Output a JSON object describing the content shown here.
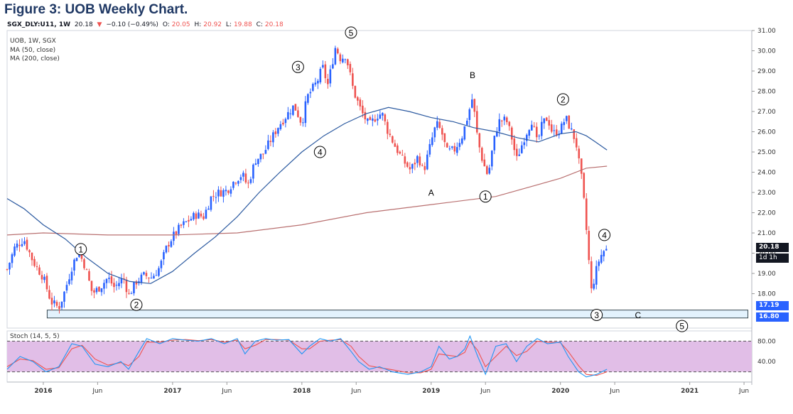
{
  "figure_title": "Figure 3: UOB Weekly Chart.",
  "header": {
    "symbol": "SGX_DLY:U11, 1W",
    "last": "20.18",
    "change_arrow": "▼",
    "change": "−0.10 (−0.49%)",
    "open_label": "O:",
    "open": "20.05",
    "high_label": "H:",
    "high": "20.92",
    "low_label": "L:",
    "low": "19.88",
    "close_label": "C:",
    "close": "20.18"
  },
  "legend": {
    "main": "UOB, 1W, SGX",
    "ma50": "MA (50, close)",
    "ma200": "MA (200, close)",
    "stoch": "Stoch (14, 5, 5)"
  },
  "price_tags": {
    "last": "20.18",
    "countdown": "1d 1h",
    "support_top": "17.19",
    "support_bottom": "16.80"
  },
  "colors": {
    "up": "#2962ff",
    "down": "#ef5350",
    "ma50": "#2c5aa0",
    "ma200": "#b97070",
    "stoch_k": "#2196f3",
    "stoch_d": "#ef5350",
    "stoch_band": "#e1bee7",
    "support_box": "#e3f2fd",
    "title": "#1f3864"
  },
  "chart_data": {
    "type": "candlestick",
    "y_axis": {
      "min": 16.3,
      "max": 31.0,
      "ticks": [
        18.0,
        19.0,
        20.0,
        21.0,
        22.0,
        23.0,
        24.0,
        25.0,
        26.0,
        27.0,
        28.0,
        29.0,
        30.0,
        31.0
      ]
    },
    "x_axis": {
      "ticks": [
        {
          "label": "2016",
          "date": 2016.0
        },
        {
          "label": "Jun",
          "date": 2016.42
        },
        {
          "label": "2017",
          "date": 2017.0
        },
        {
          "label": "Jun",
          "date": 2017.42
        },
        {
          "label": "2018",
          "date": 2018.0
        },
        {
          "label": "Jun",
          "date": 2018.42
        },
        {
          "label": "2019",
          "date": 2019.0
        },
        {
          "label": "Jun",
          "date": 2019.42
        },
        {
          "label": "2020",
          "date": 2020.0
        },
        {
          "label": "Jun",
          "date": 2020.42
        },
        {
          "label": "2021",
          "date": 2021.0
        },
        {
          "label": "Jun",
          "date": 2021.42
        }
      ],
      "range": [
        2015.72,
        2021.48
      ]
    },
    "price_path": [
      [
        2015.72,
        19.2
      ],
      [
        2015.78,
        20.3
      ],
      [
        2015.85,
        20.7
      ],
      [
        2015.92,
        19.6
      ],
      [
        2016.0,
        18.8
      ],
      [
        2016.06,
        17.6
      ],
      [
        2016.12,
        17.3
      ],
      [
        2016.17,
        18.2
      ],
      [
        2016.22,
        19.3
      ],
      [
        2016.27,
        20.1
      ],
      [
        2016.32,
        19.4
      ],
      [
        2016.38,
        18.0
      ],
      [
        2016.45,
        18.4
      ],
      [
        2016.5,
        18.8
      ],
      [
        2016.55,
        18.3
      ],
      [
        2016.62,
        18.8
      ],
      [
        2016.66,
        17.9
      ],
      [
        2016.72,
        18.6
      ],
      [
        2016.78,
        18.9
      ],
      [
        2016.84,
        18.8
      ],
      [
        2016.9,
        19.3
      ],
      [
        2016.96,
        20.4
      ],
      [
        2017.0,
        20.8
      ],
      [
        2017.06,
        21.3
      ],
      [
        2017.12,
        21.6
      ],
      [
        2017.18,
        21.9
      ],
      [
        2017.24,
        21.8
      ],
      [
        2017.3,
        22.8
      ],
      [
        2017.36,
        23.0
      ],
      [
        2017.42,
        23.1
      ],
      [
        2017.48,
        23.6
      ],
      [
        2017.54,
        23.9
      ],
      [
        2017.58,
        23.3
      ],
      [
        2017.64,
        24.6
      ],
      [
        2017.7,
        24.9
      ],
      [
        2017.76,
        25.6
      ],
      [
        2017.82,
        26.3
      ],
      [
        2017.88,
        26.8
      ],
      [
        2017.94,
        27.3
      ],
      [
        2018.0,
        26.4
      ],
      [
        2018.04,
        27.7
      ],
      [
        2018.08,
        28.1
      ],
      [
        2018.12,
        28.5
      ],
      [
        2018.16,
        29.2
      ],
      [
        2018.2,
        28.3
      ],
      [
        2018.26,
        30.2
      ],
      [
        2018.3,
        29.6
      ],
      [
        2018.34,
        29.8
      ],
      [
        2018.4,
        28.0
      ],
      [
        2018.46,
        27.0
      ],
      [
        2018.52,
        26.3
      ],
      [
        2018.58,
        26.8
      ],
      [
        2018.62,
        26.9
      ],
      [
        2018.66,
        26.1
      ],
      [
        2018.72,
        25.3
      ],
      [
        2018.78,
        24.6
      ],
      [
        2018.84,
        24.1
      ],
      [
        2018.9,
        24.8
      ],
      [
        2018.94,
        24.0
      ],
      [
        2019.0,
        25.5
      ],
      [
        2019.04,
        26.4
      ],
      [
        2019.08,
        26.0
      ],
      [
        2019.12,
        25.0
      ],
      [
        2019.18,
        25.1
      ],
      [
        2019.24,
        25.8
      ],
      [
        2019.28,
        26.7
      ],
      [
        2019.32,
        27.7
      ],
      [
        2019.36,
        25.6
      ],
      [
        2019.4,
        24.5
      ],
      [
        2019.44,
        23.8
      ],
      [
        2019.48,
        25.4
      ],
      [
        2019.52,
        26.5
      ],
      [
        2019.58,
        26.6
      ],
      [
        2019.62,
        25.8
      ],
      [
        2019.66,
        24.6
      ],
      [
        2019.72,
        25.7
      ],
      [
        2019.78,
        26.6
      ],
      [
        2019.82,
        25.4
      ],
      [
        2019.86,
        26.4
      ],
      [
        2019.9,
        26.7
      ],
      [
        2019.94,
        25.9
      ],
      [
        2020.0,
        26.1
      ],
      [
        2020.04,
        26.7
      ],
      [
        2020.08,
        26.1
      ],
      [
        2020.12,
        25.5
      ],
      [
        2020.14,
        24.6
      ],
      [
        2020.17,
        23.4
      ],
      [
        2020.2,
        21.2
      ],
      [
        2020.22,
        19.6
      ],
      [
        2020.24,
        18.1
      ],
      [
        2020.27,
        19.0
      ],
      [
        2020.3,
        19.7
      ],
      [
        2020.33,
        20.1
      ],
      [
        2020.36,
        20.18
      ]
    ],
    "ma50": [
      [
        2015.72,
        22.7
      ],
      [
        2015.85,
        22.2
      ],
      [
        2016.0,
        21.4
      ],
      [
        2016.17,
        20.7
      ],
      [
        2016.33,
        19.8
      ],
      [
        2016.5,
        19.0
      ],
      [
        2016.67,
        18.6
      ],
      [
        2016.83,
        18.5
      ],
      [
        2017.0,
        19.1
      ],
      [
        2017.17,
        20.0
      ],
      [
        2017.33,
        20.8
      ],
      [
        2017.5,
        21.8
      ],
      [
        2017.67,
        23.0
      ],
      [
        2017.83,
        24.0
      ],
      [
        2018.0,
        25.0
      ],
      [
        2018.17,
        25.8
      ],
      [
        2018.33,
        26.4
      ],
      [
        2018.5,
        26.9
      ],
      [
        2018.67,
        27.2
      ],
      [
        2018.83,
        27.0
      ],
      [
        2019.0,
        26.7
      ],
      [
        2019.17,
        26.5
      ],
      [
        2019.33,
        26.2
      ],
      [
        2019.5,
        26.0
      ],
      [
        2019.67,
        25.7
      ],
      [
        2019.83,
        25.5
      ],
      [
        2020.0,
        25.9
      ],
      [
        2020.12,
        26.0
      ],
      [
        2020.2,
        25.8
      ],
      [
        2020.27,
        25.5
      ],
      [
        2020.36,
        25.1
      ]
    ],
    "ma200": [
      [
        2015.72,
        20.9
      ],
      [
        2016.0,
        21.0
      ],
      [
        2016.5,
        20.9
      ],
      [
        2017.0,
        20.9
      ],
      [
        2017.5,
        21.0
      ],
      [
        2018.0,
        21.4
      ],
      [
        2018.5,
        22.0
      ],
      [
        2019.0,
        22.4
      ],
      [
        2019.5,
        22.8
      ],
      [
        2020.0,
        23.7
      ],
      [
        2020.2,
        24.2
      ],
      [
        2020.36,
        24.3
      ]
    ],
    "support_zone": {
      "from": 2016.03,
      "to": 2021.45,
      "low": 16.8,
      "high": 17.19
    },
    "wave_labels": [
      {
        "text": "1",
        "x": 2016.29,
        "y": 20.2,
        "circled": true
      },
      {
        "text": "2",
        "x": 2016.72,
        "y": 17.45,
        "circled": true
      },
      {
        "text": "3",
        "x": 2017.97,
        "y": 29.2,
        "circled": true
      },
      {
        "text": "4",
        "x": 2018.14,
        "y": 25.0,
        "circled": true
      },
      {
        "text": "5",
        "x": 2018.38,
        "y": 30.9,
        "circled": true
      },
      {
        "text": "B",
        "x": 2019.32,
        "y": 28.8,
        "circled": false
      },
      {
        "text": "A",
        "x": 2019.0,
        "y": 23.0,
        "circled": false
      },
      {
        "text": "1",
        "x": 2019.42,
        "y": 22.8,
        "circled": true
      },
      {
        "text": "2",
        "x": 2020.02,
        "y": 27.6,
        "circled": true
      },
      {
        "text": "4",
        "x": 2020.34,
        "y": 20.9,
        "circled": true
      },
      {
        "text": "3",
        "x": 2020.28,
        "y": 16.95,
        "circled": true
      },
      {
        "text": "C",
        "x": 2020.6,
        "y": 16.95,
        "circled": false
      },
      {
        "text": "5",
        "x": 2020.94,
        "y": 16.4,
        "circled": true
      }
    ],
    "stochastic": {
      "name": "Stoch (14, 5, 5)",
      "y_min": 0,
      "y_max": 100,
      "band": [
        20,
        80
      ],
      "ticks": [
        40.0,
        80.0
      ],
      "k": [
        [
          2015.72,
          25
        ],
        [
          2015.82,
          50
        ],
        [
          2015.92,
          40
        ],
        [
          2016.02,
          20
        ],
        [
          2016.12,
          30
        ],
        [
          2016.22,
          75
        ],
        [
          2016.3,
          70
        ],
        [
          2016.4,
          35
        ],
        [
          2016.5,
          30
        ],
        [
          2016.6,
          40
        ],
        [
          2016.66,
          25
        ],
        [
          2016.74,
          60
        ],
        [
          2016.8,
          85
        ],
        [
          2016.9,
          75
        ],
        [
          2017.0,
          85
        ],
        [
          2017.1,
          82
        ],
        [
          2017.2,
          80
        ],
        [
          2017.3,
          85
        ],
        [
          2017.4,
          75
        ],
        [
          2017.5,
          85
        ],
        [
          2017.56,
          55
        ],
        [
          2017.64,
          80
        ],
        [
          2017.72,
          85
        ],
        [
          2017.8,
          82
        ],
        [
          2017.9,
          83
        ],
        [
          2018.0,
          55
        ],
        [
          2018.06,
          70
        ],
        [
          2018.14,
          85
        ],
        [
          2018.22,
          80
        ],
        [
          2018.3,
          85
        ],
        [
          2018.38,
          60
        ],
        [
          2018.44,
          40
        ],
        [
          2018.52,
          25
        ],
        [
          2018.6,
          30
        ],
        [
          2018.7,
          20
        ],
        [
          2018.82,
          15
        ],
        [
          2018.92,
          20
        ],
        [
          2019.0,
          30
        ],
        [
          2019.06,
          70
        ],
        [
          2019.14,
          45
        ],
        [
          2019.2,
          50
        ],
        [
          2019.26,
          65
        ],
        [
          2019.3,
          90
        ],
        [
          2019.36,
          50
        ],
        [
          2019.42,
          15
        ],
        [
          2019.5,
          70
        ],
        [
          2019.58,
          75
        ],
        [
          2019.66,
          40
        ],
        [
          2019.74,
          70
        ],
        [
          2019.82,
          85
        ],
        [
          2019.9,
          75
        ],
        [
          2020.0,
          78
        ],
        [
          2020.06,
          50
        ],
        [
          2020.14,
          20
        ],
        [
          2020.2,
          10
        ],
        [
          2020.28,
          15
        ],
        [
          2020.36,
          25
        ]
      ],
      "d": [
        [
          2015.72,
          30
        ],
        [
          2015.82,
          45
        ],
        [
          2015.92,
          42
        ],
        [
          2016.02,
          25
        ],
        [
          2016.12,
          28
        ],
        [
          2016.22,
          65
        ],
        [
          2016.3,
          72
        ],
        [
          2016.4,
          45
        ],
        [
          2016.5,
          33
        ],
        [
          2016.6,
          38
        ],
        [
          2016.66,
          32
        ],
        [
          2016.74,
          50
        ],
        [
          2016.8,
          78
        ],
        [
          2016.9,
          78
        ],
        [
          2017.0,
          82
        ],
        [
          2017.1,
          83
        ],
        [
          2017.2,
          81
        ],
        [
          2017.3,
          83
        ],
        [
          2017.4,
          78
        ],
        [
          2017.5,
          82
        ],
        [
          2017.56,
          65
        ],
        [
          2017.64,
          72
        ],
        [
          2017.72,
          83
        ],
        [
          2017.8,
          83
        ],
        [
          2017.9,
          82
        ],
        [
          2018.0,
          65
        ],
        [
          2018.06,
          65
        ],
        [
          2018.14,
          80
        ],
        [
          2018.22,
          82
        ],
        [
          2018.3,
          83
        ],
        [
          2018.38,
          70
        ],
        [
          2018.44,
          50
        ],
        [
          2018.52,
          32
        ],
        [
          2018.6,
          28
        ],
        [
          2018.7,
          24
        ],
        [
          2018.82,
          18
        ],
        [
          2018.92,
          18
        ],
        [
          2019.0,
          25
        ],
        [
          2019.06,
          55
        ],
        [
          2019.14,
          52
        ],
        [
          2019.2,
          50
        ],
        [
          2019.26,
          58
        ],
        [
          2019.3,
          80
        ],
        [
          2019.36,
          62
        ],
        [
          2019.42,
          30
        ],
        [
          2019.5,
          50
        ],
        [
          2019.58,
          70
        ],
        [
          2019.66,
          52
        ],
        [
          2019.74,
          60
        ],
        [
          2019.82,
          80
        ],
        [
          2019.9,
          78
        ],
        [
          2020.0,
          77
        ],
        [
          2020.06,
          60
        ],
        [
          2020.14,
          32
        ],
        [
          2020.2,
          15
        ],
        [
          2020.28,
          13
        ],
        [
          2020.36,
          20
        ]
      ]
    }
  }
}
